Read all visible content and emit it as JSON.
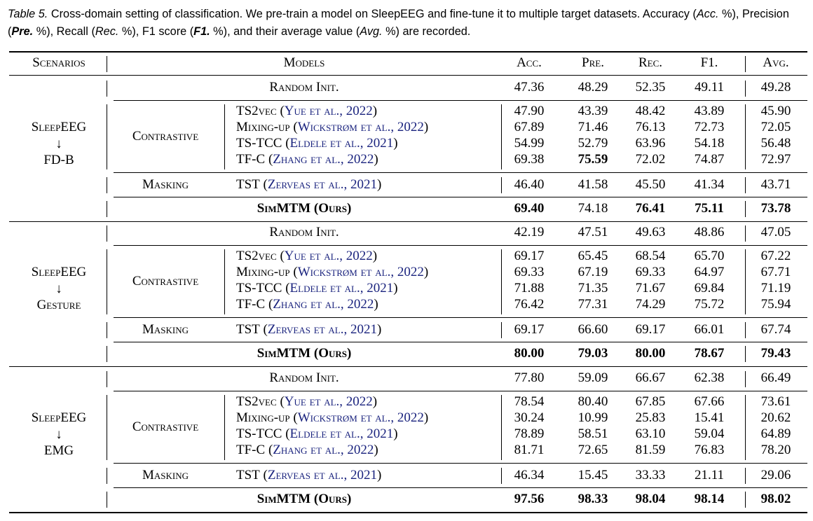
{
  "caption": {
    "label": "Table 5.",
    "segments": [
      {
        "t": " Cross-domain setting of classification. We pre-train a model on SleepEEG and fine-tune it to multiple target datasets. Accuracy (",
        "s": ""
      },
      {
        "t": "Acc.",
        "s": "em"
      },
      {
        "t": " %), Precision (",
        "s": ""
      },
      {
        "t": "Pre.",
        "s": "emb"
      },
      {
        "t": " %), Recall (",
        "s": ""
      },
      {
        "t": "Rec.",
        "s": "em"
      },
      {
        "t": " %), F1 score (",
        "s": ""
      },
      {
        "t": "F1.",
        "s": "emb"
      },
      {
        "t": " %), and their average value (",
        "s": ""
      },
      {
        "t": "Avg.",
        "s": "em"
      },
      {
        "t": " %) are recorded.",
        "s": ""
      }
    ]
  },
  "header": {
    "scenarios": "Scenarios",
    "models": "Models",
    "metrics": [
      "Acc.",
      "Pre.",
      "Rec.",
      "F1.",
      "Avg."
    ]
  },
  "blocks": [
    {
      "scenario": [
        "SleepEEG",
        "↓",
        "FD-B"
      ],
      "random": {
        "label": "Random Init.",
        "values": [
          "47.36",
          "48.29",
          "52.35",
          "49.11",
          "49.28"
        ],
        "bold": [
          false,
          false,
          false,
          false,
          false
        ]
      },
      "contrastive_label": "Contrastive",
      "contrastive": [
        {
          "name": "TS2vec",
          "cite": "Yue et al., 2022",
          "values": [
            "47.90",
            "43.39",
            "48.42",
            "43.89",
            "45.90"
          ],
          "bold": [
            false,
            false,
            false,
            false,
            false
          ]
        },
        {
          "name": "Mixing-up",
          "cite": "Wickstrøm et al., 2022",
          "values": [
            "67.89",
            "71.46",
            "76.13",
            "72.73",
            "72.05"
          ],
          "bold": [
            false,
            false,
            false,
            false,
            false
          ]
        },
        {
          "name": "TS-TCC",
          "cite": "Eldele et al., 2021",
          "values": [
            "54.99",
            "52.79",
            "63.96",
            "54.18",
            "56.48"
          ],
          "bold": [
            false,
            false,
            false,
            false,
            false
          ]
        },
        {
          "name": "TF-C",
          "cite": "Zhang et al., 2022",
          "values": [
            "69.38",
            "75.59",
            "72.02",
            "74.87",
            "72.97"
          ],
          "bold": [
            false,
            true,
            false,
            false,
            false
          ]
        }
      ],
      "masking_label": "Masking",
      "masking": {
        "name": "TST",
        "cite": "Zerveas et al., 2021",
        "values": [
          "46.40",
          "41.58",
          "45.50",
          "41.34",
          "43.71"
        ],
        "bold": [
          false,
          false,
          false,
          false,
          false
        ]
      },
      "ours": {
        "label": "SimMTM (Ours)",
        "values": [
          "69.40",
          "74.18",
          "76.41",
          "75.11",
          "73.78"
        ],
        "bold": [
          true,
          false,
          true,
          true,
          true
        ]
      }
    },
    {
      "scenario": [
        "SleepEEG",
        "↓",
        "Gesture"
      ],
      "random": {
        "label": "Random Init.",
        "values": [
          "42.19",
          "47.51",
          "49.63",
          "48.86",
          "47.05"
        ],
        "bold": [
          false,
          false,
          false,
          false,
          false
        ]
      },
      "contrastive_label": "Contrastive",
      "contrastive": [
        {
          "name": "TS2vec",
          "cite": "Yue et al., 2022",
          "values": [
            "69.17",
            "65.45",
            "68.54",
            "65.70",
            "67.22"
          ],
          "bold": [
            false,
            false,
            false,
            false,
            false
          ]
        },
        {
          "name": "Mixing-up",
          "cite": "Wickstrøm et al., 2022",
          "values": [
            "69.33",
            "67.19",
            "69.33",
            "64.97",
            "67.71"
          ],
          "bold": [
            false,
            false,
            false,
            false,
            false
          ]
        },
        {
          "name": "TS-TCC",
          "cite": "Eldele et al., 2021",
          "values": [
            "71.88",
            "71.35",
            "71.67",
            "69.84",
            "71.19"
          ],
          "bold": [
            false,
            false,
            false,
            false,
            false
          ]
        },
        {
          "name": "TF-C",
          "cite": "Zhang et al., 2022",
          "values": [
            "76.42",
            "77.31",
            "74.29",
            "75.72",
            "75.94"
          ],
          "bold": [
            false,
            false,
            false,
            false,
            false
          ]
        }
      ],
      "masking_label": "Masking",
      "masking": {
        "name": "TST",
        "cite": "Zerveas et al., 2021",
        "values": [
          "69.17",
          "66.60",
          "69.17",
          "66.01",
          "67.74"
        ],
        "bold": [
          false,
          false,
          false,
          false,
          false
        ]
      },
      "ours": {
        "label": "SimMTM (Ours)",
        "values": [
          "80.00",
          "79.03",
          "80.00",
          "78.67",
          "79.43"
        ],
        "bold": [
          true,
          true,
          true,
          true,
          true
        ]
      }
    },
    {
      "scenario": [
        "SleepEEG",
        "↓",
        "EMG"
      ],
      "random": {
        "label": "Random Init.",
        "values": [
          "77.80",
          "59.09",
          "66.67",
          "62.38",
          "66.49"
        ],
        "bold": [
          false,
          false,
          false,
          false,
          false
        ]
      },
      "contrastive_label": "Contrastive",
      "contrastive": [
        {
          "name": "TS2vec",
          "cite": "Yue et al., 2022",
          "values": [
            "78.54",
            "80.40",
            "67.85",
            "67.66",
            "73.61"
          ],
          "bold": [
            false,
            false,
            false,
            false,
            false
          ]
        },
        {
          "name": "Mixing-up",
          "cite": "Wickstrøm et al., 2022",
          "values": [
            "30.24",
            "10.99",
            "25.83",
            "15.41",
            "20.62"
          ],
          "bold": [
            false,
            false,
            false,
            false,
            false
          ]
        },
        {
          "name": "TS-TCC",
          "cite": "Eldele et al., 2021",
          "values": [
            "78.89",
            "58.51",
            "63.10",
            "59.04",
            "64.89"
          ],
          "bold": [
            false,
            false,
            false,
            false,
            false
          ]
        },
        {
          "name": "TF-C",
          "cite": "Zhang et al., 2022",
          "values": [
            "81.71",
            "72.65",
            "81.59",
            "76.83",
            "78.20"
          ],
          "bold": [
            false,
            false,
            false,
            false,
            false
          ]
        }
      ],
      "masking_label": "Masking",
      "masking": {
        "name": "TST",
        "cite": "Zerveas et al., 2021",
        "values": [
          "46.34",
          "15.45",
          "33.33",
          "21.11",
          "29.06"
        ],
        "bold": [
          false,
          false,
          false,
          false,
          false
        ]
      },
      "ours": {
        "label": "SimMTM (Ours)",
        "values": [
          "97.56",
          "98.33",
          "98.04",
          "98.14",
          "98.02"
        ],
        "bold": [
          true,
          true,
          true,
          true,
          true
        ]
      }
    }
  ]
}
